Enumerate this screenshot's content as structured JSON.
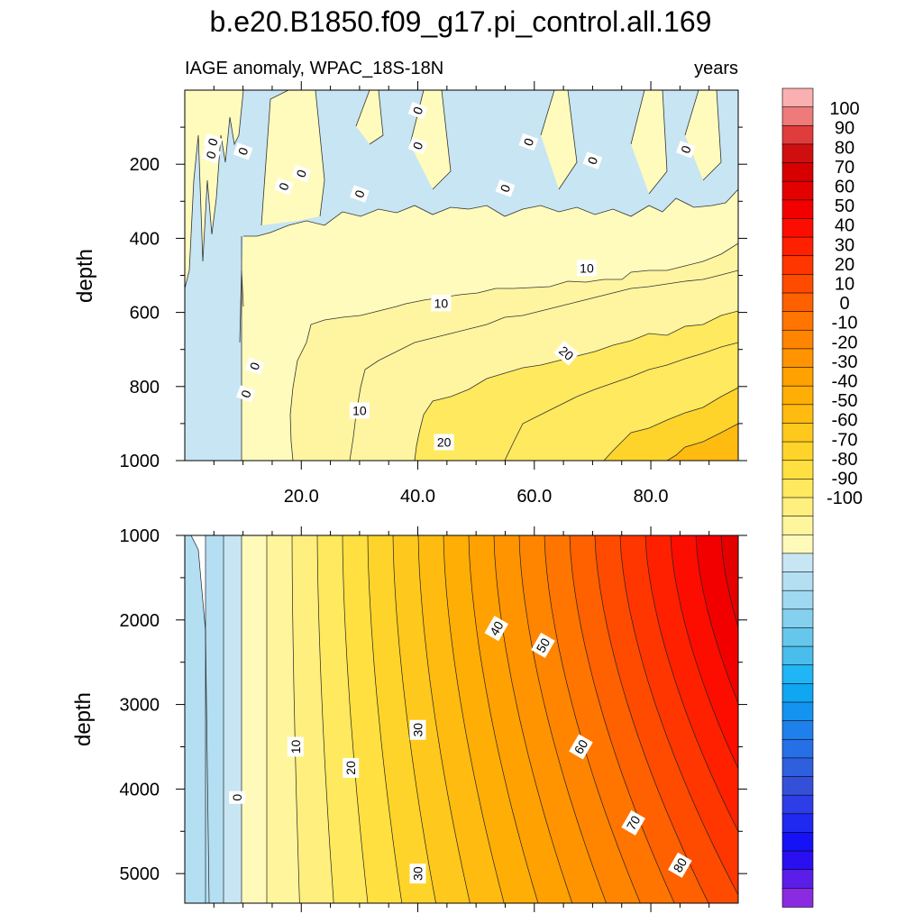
{
  "chart_data": {
    "type": "contour",
    "title": "b.e20.B1850.f09_g17.pi_control.all.169",
    "subtitle_left": "IAGE anomaly, WPAC_18S-18N",
    "subtitle_right": "years",
    "xlabel": "",
    "x_ticks": [
      "20.0",
      "40.0",
      "60.0",
      "80.0"
    ],
    "xlim": [
      0,
      95
    ],
    "panels": [
      {
        "name": "upper",
        "ylabel": "depth",
        "ylim": [
          1000,
          0
        ],
        "y_ticks": [
          "200",
          "400",
          "600",
          "800",
          "1000"
        ],
        "contour_labels": [
          {
            "text": "0",
            "x": 4.5,
            "y": 175
          },
          {
            "text": "0",
            "x": 4.8,
            "y": 140
          },
          {
            "text": "0",
            "x": 10,
            "y": 165
          },
          {
            "text": "0",
            "x": 20,
            "y": 225
          },
          {
            "text": "0",
            "x": 17,
            "y": 260
          },
          {
            "text": "0",
            "x": 30,
            "y": 280
          },
          {
            "text": "0",
            "x": 40,
            "y": 55
          },
          {
            "text": "0",
            "x": 40,
            "y": 150
          },
          {
            "text": "0",
            "x": 59,
            "y": 140
          },
          {
            "text": "0",
            "x": 55,
            "y": 265
          },
          {
            "text": "0",
            "x": 70,
            "y": 190
          },
          {
            "text": "0",
            "x": 86,
            "y": 160
          },
          {
            "text": "0",
            "x": 12,
            "y": 745
          },
          {
            "text": "0",
            "x": 10.5,
            "y": 820
          },
          {
            "text": "10",
            "x": 69,
            "y": 480
          },
          {
            "text": "10",
            "x": 44,
            "y": 575
          },
          {
            "text": "10",
            "x": 30,
            "y": 865
          },
          {
            "text": "20",
            "x": 65.5,
            "y": 710
          },
          {
            "text": "20",
            "x": 44.5,
            "y": 950
          }
        ]
      },
      {
        "name": "lower",
        "ylabel": "depth",
        "ylim": [
          5350,
          1000
        ],
        "y_ticks": [
          "1000",
          "2000",
          "3000",
          "4000",
          "5000"
        ],
        "contour_labels": [
          {
            "text": "40",
            "x": 53.5,
            "y": 2100
          },
          {
            "text": "50",
            "x": 61.5,
            "y": 2300
          },
          {
            "text": "30",
            "x": 40,
            "y": 3300
          },
          {
            "text": "10",
            "x": 19,
            "y": 3500
          },
          {
            "text": "20",
            "x": 28.5,
            "y": 3750
          },
          {
            "text": "60",
            "x": 68,
            "y": 3500
          },
          {
            "text": "0",
            "x": 9,
            "y": 4100
          },
          {
            "text": "70",
            "x": 77,
            "y": 4400
          },
          {
            "text": "80",
            "x": 85,
            "y": 4900
          },
          {
            "text": "30",
            "x": 40,
            "y": 5000
          }
        ]
      }
    ],
    "colorbar": {
      "labels": [
        "100",
        "90",
        "80",
        "70",
        "60",
        "50",
        "40",
        "30",
        "20",
        "10",
        "0",
        "-10",
        "-20",
        "-30",
        "-40",
        "-50",
        "-60",
        "-70",
        "-80",
        "-90",
        "-100"
      ],
      "colors": [
        "#fab0b0",
        "#ee7a7a",
        "#e03c3c",
        "#cf0f0f",
        "#d60000",
        "#e50000",
        "#f20000",
        "#fd0d00",
        "#ff2000",
        "#ff3600",
        "#ff4b00",
        "#ff6000",
        "#ff7500",
        "#ff8500",
        "#ff9400",
        "#ffa100",
        "#ffae05",
        "#ffbb10",
        "#ffc81c",
        "#ffd42a",
        "#ffe040",
        "#ffe95e",
        "#ffef7f",
        "#fff59d",
        "#fff9ba",
        "#c8e5f3",
        "#b4dff2",
        "#9fd8f0",
        "#84d0ee",
        "#67c6ec",
        "#49bdeb",
        "#20b5f5",
        "#0fa6f2",
        "#1593f0",
        "#1d80eb",
        "#276fe6",
        "#2e5fdf",
        "#3550d8",
        "#2d3ee8",
        "#2029f0",
        "#1512f5",
        "#2a10f0",
        "#5a1ee8",
        "#8a2be2"
      ]
    }
  }
}
